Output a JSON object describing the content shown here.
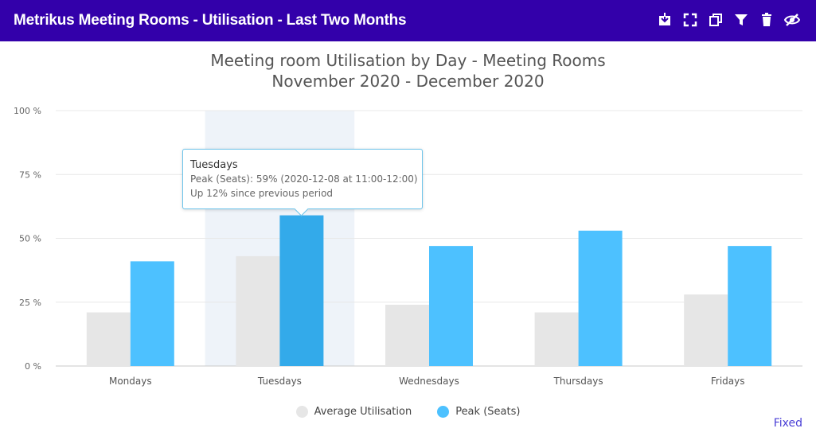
{
  "header": {
    "title": "Metrikus Meeting Rooms - Utilisation - Last Two Months",
    "background": "#3300aa",
    "icons": [
      "download-icon",
      "fullscreen-icon",
      "copy-icon",
      "filter-icon",
      "trash-icon",
      "hide-eye-icon"
    ]
  },
  "chart_data": {
    "type": "bar",
    "title": "Meeting room Utilisation by Day - Meeting Rooms",
    "subtitle": "November 2020 - December 2020",
    "categories": [
      "Mondays",
      "Tuesdays",
      "Wednesdays",
      "Thursdays",
      "Fridays"
    ],
    "series": [
      {
        "name": "Average Utilisation",
        "values": [
          21,
          43,
          24,
          21,
          28
        ],
        "color": "#e6e6e6"
      },
      {
        "name": "Peak (Seats)",
        "values": [
          41,
          59,
          47,
          53,
          47
        ],
        "color": "#4dc1ff",
        "highlight_color": "#33aaea"
      }
    ],
    "ylim": [
      0,
      100
    ],
    "yticks": [
      "0 %",
      "25 %",
      "50 %",
      "75 %",
      "100 %"
    ],
    "ytick_values": [
      0,
      25,
      50,
      75,
      100
    ],
    "grid": true,
    "highlighted_category": "Tuesdays",
    "legend_position": "bottom",
    "tooltip": {
      "title": "Tuesdays",
      "line1": "Peak (Seats): 59% (2020-12-08 at 11:00-12:00)",
      "line2": "Up 12% since previous period"
    }
  },
  "footer": {
    "link": "Fixed"
  }
}
